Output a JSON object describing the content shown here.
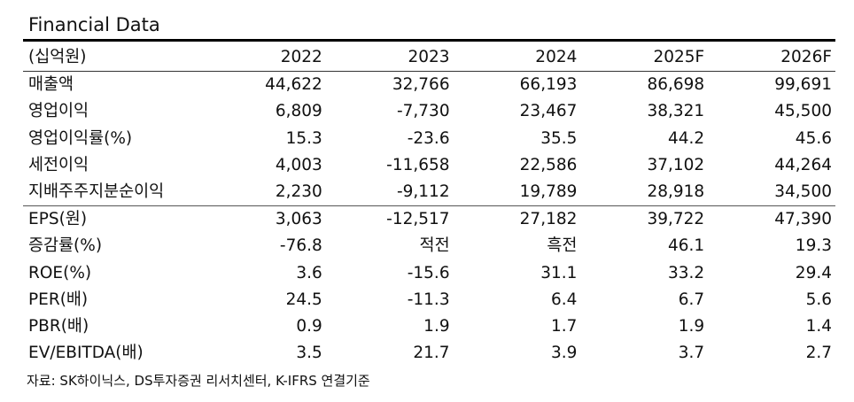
{
  "title": "Financial Data",
  "header": [
    "(십억원)",
    "2022",
    "2023",
    "2024",
    "2025F",
    "2026F"
  ],
  "rows": [
    [
      "매출액",
      "44,622",
      "32,766",
      "66,193",
      "86,698",
      "99,691"
    ],
    [
      "영업이익",
      "6,809",
      "-7,730",
      "23,467",
      "38,321",
      "45,500"
    ],
    [
      "영업이익률(%)",
      "15.3",
      "-23.6",
      "35.5",
      "44.2",
      "45.6"
    ],
    [
      "세전이익",
      "4,003",
      "-11,658",
      "22,586",
      "37,102",
      "44,264"
    ],
    [
      "지배주주지분순이익",
      "2,230",
      "-9,112",
      "19,789",
      "28,918",
      "34,500"
    ],
    [
      "EPS(원)",
      "3,063",
      "-12,517",
      "27,182",
      "39,722",
      "47,390"
    ],
    [
      "증감률(%)",
      "-76.8",
      "적전",
      "흑전",
      "46.1",
      "19.3"
    ],
    [
      "ROE(%)",
      "3.6",
      "-15.6",
      "31.1",
      "33.2",
      "29.4"
    ],
    [
      "PER(배)",
      "24.5",
      "-11.3",
      "6.4",
      "6.7",
      "5.6"
    ],
    [
      "PBR(배)",
      "0.9",
      "1.9",
      "1.7",
      "1.9",
      "1.4"
    ],
    [
      "EV/EBITDA(배)",
      "3.5",
      "21.7",
      "3.9",
      "3.7",
      "2.7"
    ]
  ],
  "source": "자료: SK하이닉스, DS투자증권 리서치센터, K-IFRS 연결기준"
}
